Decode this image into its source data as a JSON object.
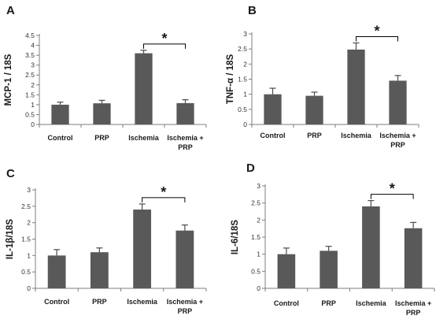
{
  "colors": {
    "bar": "#595959",
    "error_bar": "#4a4a4a",
    "axis": "#7f7f7f",
    "bracket": "#000000"
  },
  "chart_data": [
    {
      "type": "bar",
      "panel": "A",
      "ylabel": "MCP-1 / 18S",
      "categories": [
        "Control",
        "PRP",
        "Ischemia",
        "Ischemia +\nPRP"
      ],
      "values": [
        1.0,
        1.07,
        3.6,
        1.08
      ],
      "errors": [
        0.13,
        0.15,
        0.15,
        0.17
      ],
      "ylim": [
        0,
        4.5
      ],
      "yticks": [
        "0",
        "0.5",
        "1",
        "1.5",
        "2",
        "2.5",
        "3",
        "3.5",
        "4",
        "4.5"
      ],
      "yticks_values": [
        0,
        0.5,
        1,
        1.5,
        2,
        2.5,
        3,
        3.5,
        4,
        4.5
      ],
      "significance": {
        "from": 2,
        "to": 3,
        "label": "*"
      },
      "grid": false,
      "legend": "none"
    },
    {
      "type": "bar",
      "panel": "B",
      "ylabel": "TNF-α / 18S",
      "categories": [
        "Control",
        "PRP",
        "Ischemia",
        "Ischemia +\nPRP"
      ],
      "values": [
        1.0,
        0.95,
        2.48,
        1.45
      ],
      "errors": [
        0.2,
        0.12,
        0.22,
        0.17
      ],
      "ylim": [
        0,
        3
      ],
      "yticks": [
        "0",
        "0.5",
        "1",
        "1.5",
        "2",
        "2.5",
        "3"
      ],
      "yticks_values": [
        0,
        0.5,
        1,
        1.5,
        2,
        2.5,
        3
      ],
      "significance": {
        "from": 2,
        "to": 3,
        "label": "*"
      },
      "grid": false,
      "legend": "none"
    },
    {
      "type": "bar",
      "panel": "C",
      "ylabel": "IL-1β/18S",
      "categories": [
        "Control",
        "PRP",
        "Ischemia",
        "Ischemia +\nPRP"
      ],
      "values": [
        1.0,
        1.1,
        2.4,
        1.76
      ],
      "errors": [
        0.18,
        0.13,
        0.17,
        0.17
      ],
      "ylim": [
        0,
        3
      ],
      "yticks": [
        "0",
        "0.5",
        "1",
        "1.5",
        "2",
        "2.5",
        "3"
      ],
      "yticks_values": [
        0,
        0.5,
        1,
        1.5,
        2,
        2.5,
        3
      ],
      "significance": {
        "from": 2,
        "to": 3,
        "label": "*"
      },
      "grid": false,
      "legend": "none"
    },
    {
      "type": "bar",
      "panel": "D",
      "ylabel": "IL-6/18S",
      "categories": [
        "Control",
        "PRP",
        "Ischemia",
        "Ischemia +\nPRP"
      ],
      "values": [
        1.0,
        1.1,
        2.4,
        1.76
      ],
      "errors": [
        0.18,
        0.13,
        0.17,
        0.17
      ],
      "ylim": [
        0,
        3
      ],
      "yticks": [
        "0",
        "0.5",
        "1",
        "1.5",
        "2",
        "2.5",
        "3"
      ],
      "yticks_values": [
        0,
        0.5,
        1,
        1.5,
        2,
        2.5,
        3
      ],
      "significance": {
        "from": 2,
        "to": 3,
        "label": "*"
      },
      "grid": false,
      "legend": "none"
    }
  ]
}
